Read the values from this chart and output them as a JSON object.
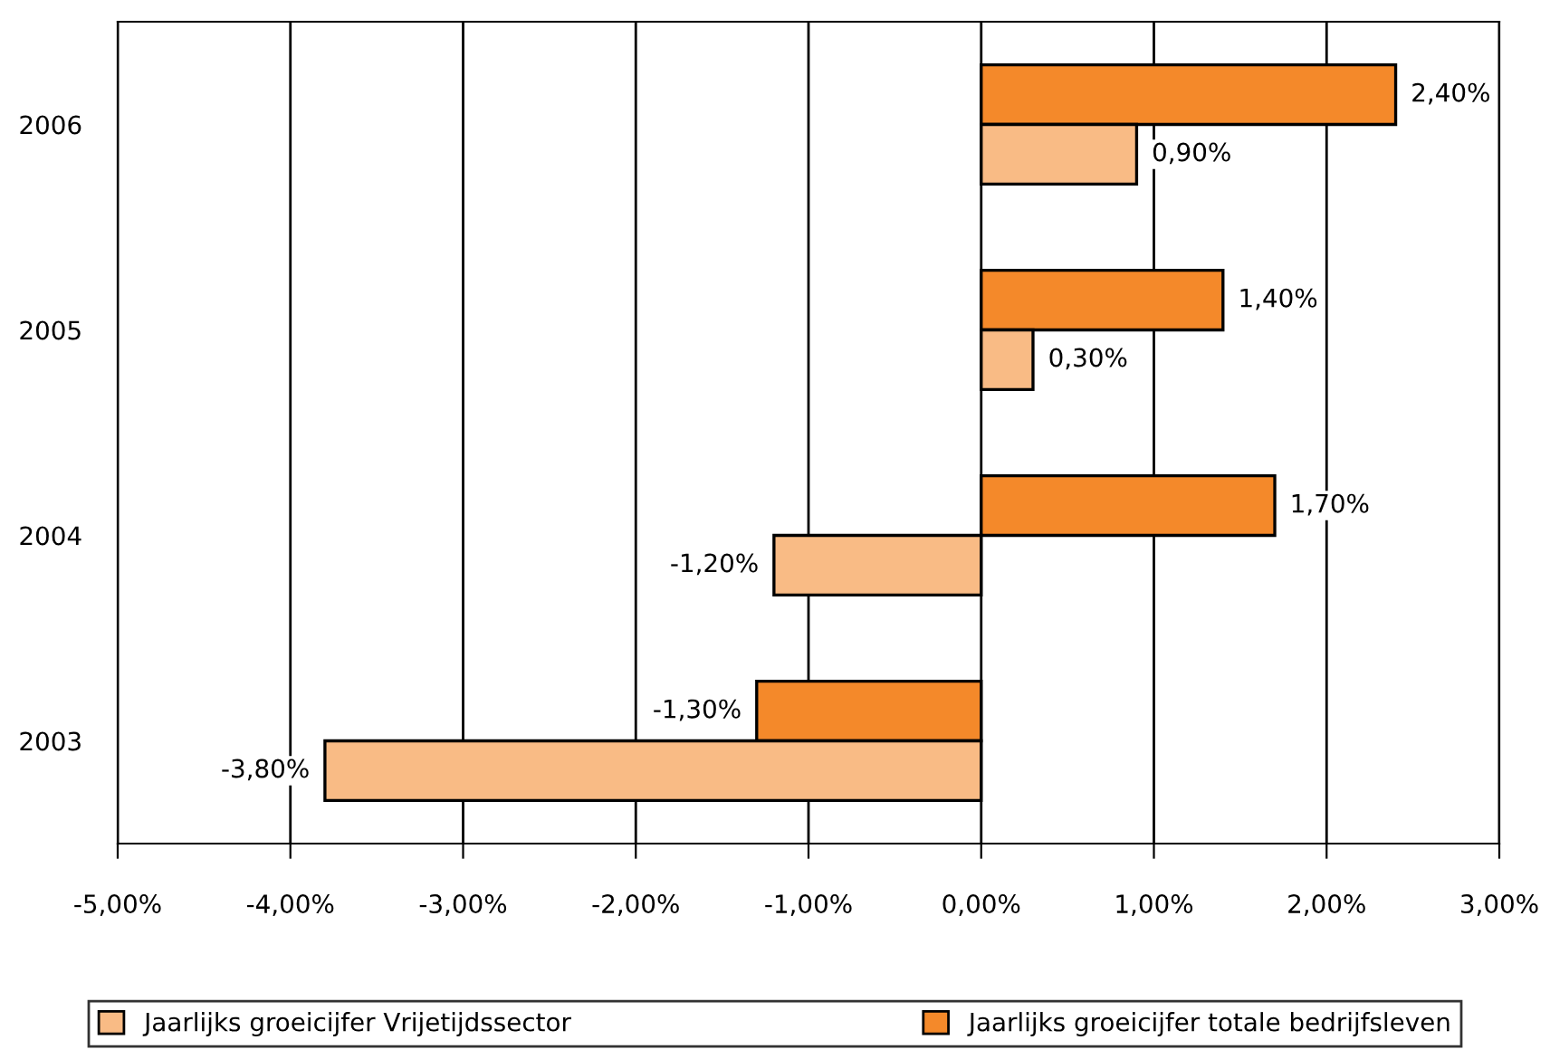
{
  "chart_data": {
    "type": "bar",
    "orientation": "horizontal",
    "categories": [
      "2006",
      "2005",
      "2004",
      "2003"
    ],
    "series": [
      {
        "name": "Jaarlijks groeicijfer totale bedrijfsleven",
        "color": "#f4892a",
        "values": [
          2.4,
          1.4,
          1.7,
          -1.3
        ],
        "value_labels": [
          "2,40%",
          "1,40%",
          "1,70%",
          "-1,30%"
        ]
      },
      {
        "name": "Jaarlijks groeicijfer Vrijetijdssector",
        "color": "#f9bb85",
        "values": [
          0.9,
          0.3,
          -1.2,
          -3.8
        ],
        "value_labels": [
          "0,90%",
          "0,30%",
          "-1,20%",
          "-3,80%"
        ]
      }
    ],
    "xlim": [
      -5,
      3
    ],
    "xticks": [
      {
        "value": -5,
        "label": "-5,00%"
      },
      {
        "value": -4,
        "label": "-4,00%"
      },
      {
        "value": -3,
        "label": "-3,00%"
      },
      {
        "value": -2,
        "label": "-2,00%"
      },
      {
        "value": -1,
        "label": "-1,00%"
      },
      {
        "value": 0,
        "label": "0,00%"
      },
      {
        "value": 1,
        "label": "1,00%"
      },
      {
        "value": 2,
        "label": "2,00%"
      },
      {
        "value": 3,
        "label": "3,00%"
      }
    ],
    "grid": "x",
    "legend": "bottom"
  }
}
